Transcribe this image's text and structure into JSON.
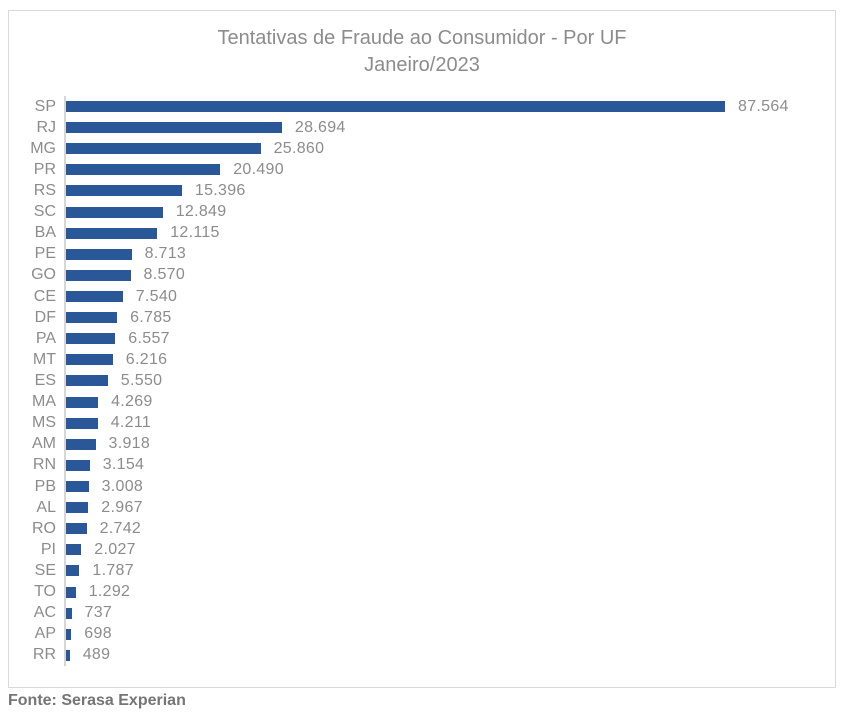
{
  "chart_data": {
    "type": "bar",
    "orientation": "horizontal",
    "title": "Tentativas de Fraude ao Consumidor - Por UF",
    "subtitle": "Janeiro/2023",
    "categories": [
      "SP",
      "RJ",
      "MG",
      "PR",
      "RS",
      "SC",
      "BA",
      "PE",
      "GO",
      "CE",
      "DF",
      "PA",
      "MT",
      "ES",
      "MA",
      "MS",
      "AM",
      "RN",
      "PB",
      "AL",
      "RO",
      "PI",
      "SE",
      "TO",
      "AC",
      "AP",
      "RR"
    ],
    "values": [
      87564,
      28694,
      25860,
      20490,
      15396,
      12849,
      12115,
      8713,
      8570,
      7540,
      6785,
      6557,
      6216,
      5550,
      4269,
      4211,
      3918,
      3154,
      3008,
      2967,
      2742,
      2027,
      1787,
      1292,
      737,
      698,
      489
    ],
    "value_labels": [
      "87.564",
      "28.694",
      "25.860",
      "20.490",
      "15.396",
      "12.849",
      "12.115",
      "8.713",
      "8.570",
      "7.540",
      "6.785",
      "6.557",
      "6.216",
      "5.550",
      "4.269",
      "4.211",
      "3.918",
      "3.154",
      "3.008",
      "2.967",
      "2.742",
      "2.027",
      "1.787",
      "1.292",
      "737",
      "698",
      "489"
    ],
    "xlim": [
      0,
      87564
    ],
    "xlabel": "",
    "ylabel": "",
    "grid": false,
    "legend": false,
    "bar_color": "#2A5798",
    "label_color": "#8C8C8C"
  },
  "footer": {
    "source_label": "Fonte: Serasa Experian"
  }
}
